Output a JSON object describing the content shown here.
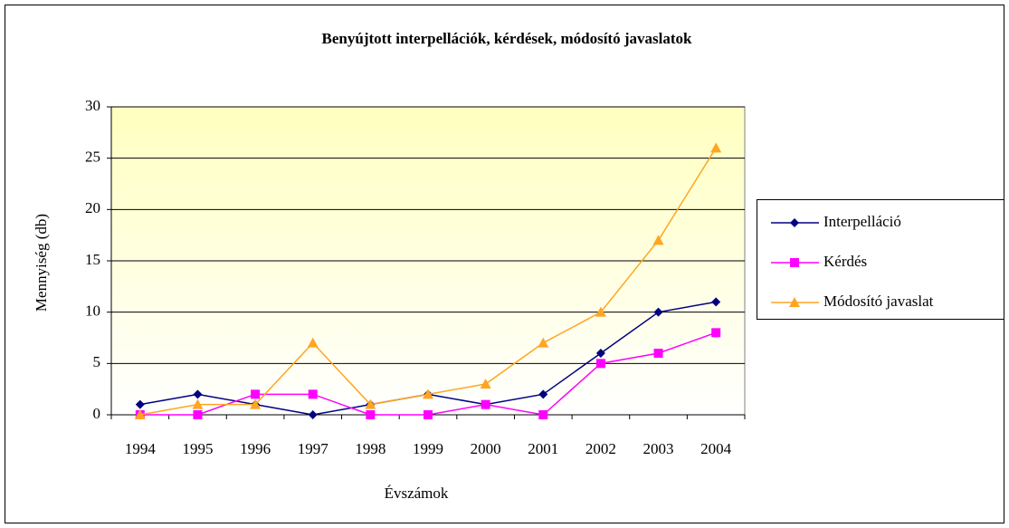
{
  "chart_data": {
    "type": "line",
    "title": "Benyújtott interpellációk, kérdések, módosító javaslatok",
    "x_label": "Évszámok",
    "y_label": "Mennyiség (db)",
    "categories": [
      "1994",
      "1995",
      "1996",
      "1997",
      "1998",
      "1999",
      "2000",
      "2001",
      "2002",
      "2003",
      "2004"
    ],
    "series": [
      {
        "name": "Interpelláció",
        "color": "#000080",
        "marker": "diamond",
        "values": [
          1,
          2,
          1,
          0,
          1,
          2,
          1,
          2,
          6,
          10,
          11
        ]
      },
      {
        "name": "Kérdés",
        "color": "#ff00ff",
        "marker": "square",
        "values": [
          0,
          0,
          2,
          2,
          0,
          0,
          1,
          0,
          5,
          6,
          8
        ]
      },
      {
        "name": "Módosító javaslat",
        "color": "#ffa520",
        "marker": "triangle",
        "values": [
          0,
          1,
          1,
          7,
          1,
          2,
          3,
          7,
          10,
          17,
          26
        ]
      }
    ],
    "ylim": [
      0,
      30
    ],
    "yticks": [
      0,
      5,
      10,
      15,
      20,
      25,
      30
    ],
    "grid": true,
    "legend": "right"
  }
}
